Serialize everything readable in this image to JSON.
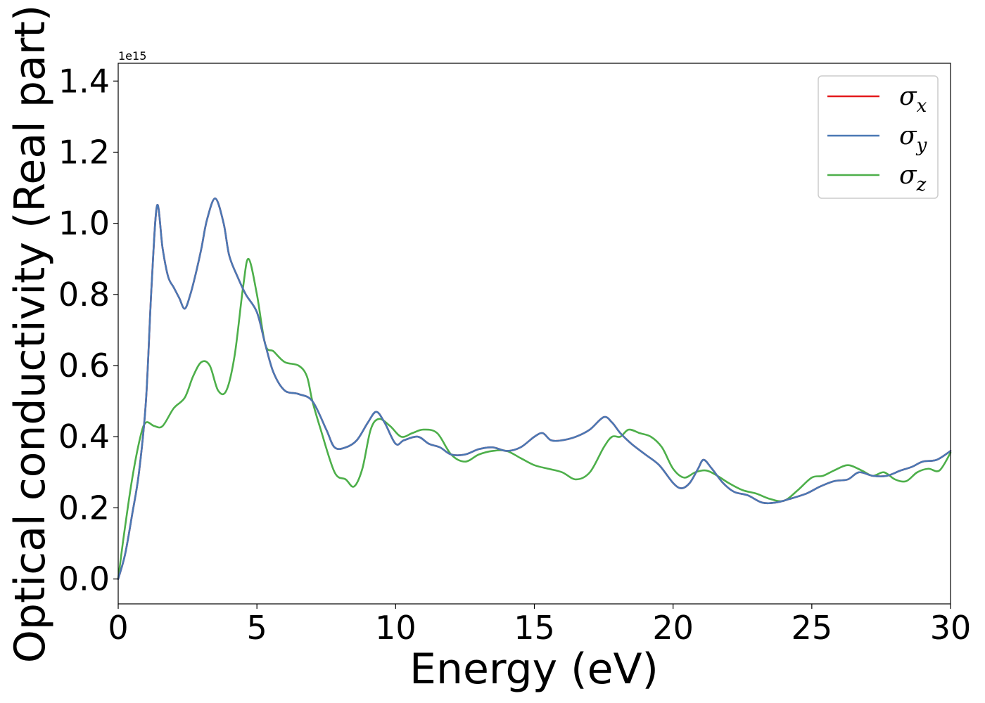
{
  "chart_data": {
    "type": "line",
    "xlabel": "Energy (eV)",
    "ylabel": "Optical conductivity (Real part)",
    "y_offset_label": "1e15",
    "xlim": [
      0,
      30
    ],
    "ylim": [
      -0.07,
      1.45
    ],
    "x_ticks": [
      0,
      5,
      10,
      15,
      20,
      25,
      30
    ],
    "x_tick_labels": [
      "0",
      "5",
      "10",
      "15",
      "20",
      "25",
      "30"
    ],
    "y_ticks": [
      0.0,
      0.2,
      0.4,
      0.6,
      0.8,
      1.0,
      1.2,
      1.4
    ],
    "y_tick_labels": [
      "0.0",
      "0.2",
      "0.4",
      "0.6",
      "0.8",
      "1.0",
      "1.2",
      "1.4"
    ],
    "grid": false,
    "legend_position": "top-right",
    "series": [
      {
        "name": "σx",
        "color": "#e41a1c",
        "x": [
          0,
          0.25,
          0.5,
          0.75,
          1.0,
          1.2,
          1.4,
          1.6,
          1.8,
          2.0,
          2.2,
          2.4,
          2.6,
          2.8,
          3.0,
          3.2,
          3.5,
          3.8,
          4.0,
          4.3,
          4.6,
          5.0,
          5.3,
          5.6,
          6.0,
          6.5,
          7.0,
          7.5,
          7.8,
          8.2,
          8.6,
          9.0,
          9.3,
          9.6,
          10.0,
          10.3,
          10.8,
          11.2,
          11.6,
          12.0,
          12.5,
          13.0,
          13.5,
          14.0,
          14.5,
          15.0,
          15.3,
          15.6,
          16.0,
          16.5,
          17.0,
          17.5,
          17.8,
          18.1,
          18.5,
          19.0,
          19.5,
          20.0,
          20.3,
          20.6,
          20.9,
          21.1,
          21.4,
          21.8,
          22.2,
          22.7,
          23.2,
          23.7,
          24.2,
          24.8,
          25.3,
          25.8,
          26.3,
          26.7,
          27.2,
          27.7,
          28.2,
          28.6,
          29.0,
          29.5,
          30.0
        ],
        "values": [
          0.0,
          0.07,
          0.18,
          0.3,
          0.5,
          0.82,
          1.05,
          0.93,
          0.85,
          0.82,
          0.79,
          0.76,
          0.8,
          0.86,
          0.93,
          1.01,
          1.07,
          1.0,
          0.91,
          0.85,
          0.8,
          0.75,
          0.66,
          0.58,
          0.53,
          0.52,
          0.5,
          0.42,
          0.37,
          0.37,
          0.39,
          0.44,
          0.47,
          0.44,
          0.38,
          0.39,
          0.4,
          0.38,
          0.37,
          0.35,
          0.35,
          0.365,
          0.37,
          0.36,
          0.37,
          0.4,
          0.41,
          0.39,
          0.39,
          0.4,
          0.42,
          0.455,
          0.44,
          0.41,
          0.38,
          0.35,
          0.32,
          0.27,
          0.255,
          0.27,
          0.31,
          0.335,
          0.31,
          0.27,
          0.245,
          0.235,
          0.215,
          0.215,
          0.225,
          0.24,
          0.26,
          0.275,
          0.28,
          0.3,
          0.29,
          0.29,
          0.305,
          0.315,
          0.33,
          0.335,
          0.36
        ]
      },
      {
        "name": "σy",
        "color": "#4a78b4",
        "x": [
          0,
          0.25,
          0.5,
          0.75,
          1.0,
          1.2,
          1.4,
          1.6,
          1.8,
          2.0,
          2.2,
          2.4,
          2.6,
          2.8,
          3.0,
          3.2,
          3.5,
          3.8,
          4.0,
          4.3,
          4.6,
          5.0,
          5.3,
          5.6,
          6.0,
          6.5,
          7.0,
          7.5,
          7.8,
          8.2,
          8.6,
          9.0,
          9.3,
          9.6,
          10.0,
          10.3,
          10.8,
          11.2,
          11.6,
          12.0,
          12.5,
          13.0,
          13.5,
          14.0,
          14.5,
          15.0,
          15.3,
          15.6,
          16.0,
          16.5,
          17.0,
          17.5,
          17.8,
          18.1,
          18.5,
          19.0,
          19.5,
          20.0,
          20.3,
          20.6,
          20.9,
          21.1,
          21.4,
          21.8,
          22.2,
          22.7,
          23.2,
          23.7,
          24.2,
          24.8,
          25.3,
          25.8,
          26.3,
          26.7,
          27.2,
          27.7,
          28.2,
          28.6,
          29.0,
          29.5,
          30.0
        ],
        "values": [
          0.0,
          0.07,
          0.18,
          0.3,
          0.5,
          0.82,
          1.05,
          0.93,
          0.85,
          0.82,
          0.79,
          0.76,
          0.8,
          0.86,
          0.93,
          1.01,
          1.07,
          1.0,
          0.91,
          0.85,
          0.8,
          0.75,
          0.66,
          0.58,
          0.53,
          0.52,
          0.5,
          0.42,
          0.37,
          0.37,
          0.39,
          0.44,
          0.47,
          0.44,
          0.38,
          0.39,
          0.4,
          0.38,
          0.37,
          0.35,
          0.35,
          0.365,
          0.37,
          0.36,
          0.37,
          0.4,
          0.41,
          0.39,
          0.39,
          0.4,
          0.42,
          0.455,
          0.44,
          0.41,
          0.38,
          0.35,
          0.32,
          0.27,
          0.255,
          0.27,
          0.31,
          0.335,
          0.31,
          0.27,
          0.245,
          0.235,
          0.215,
          0.215,
          0.225,
          0.24,
          0.26,
          0.275,
          0.28,
          0.3,
          0.29,
          0.29,
          0.305,
          0.315,
          0.33,
          0.335,
          0.36
        ]
      },
      {
        "name": "σz",
        "color": "#4daf4a",
        "x": [
          0,
          0.2,
          0.5,
          0.8,
          1.0,
          1.3,
          1.6,
          2.0,
          2.4,
          2.7,
          3.0,
          3.3,
          3.6,
          3.9,
          4.2,
          4.5,
          4.7,
          5.0,
          5.3,
          5.6,
          6.0,
          6.5,
          6.8,
          7.0,
          7.3,
          7.8,
          8.2,
          8.5,
          8.8,
          9.1,
          9.4,
          9.8,
          10.2,
          10.6,
          11.0,
          11.5,
          12.0,
          12.5,
          13.0,
          13.5,
          14.0,
          14.5,
          15.0,
          15.5,
          16.0,
          16.5,
          17.0,
          17.5,
          17.8,
          18.1,
          18.4,
          18.8,
          19.2,
          19.6,
          20.0,
          20.4,
          20.8,
          21.2,
          21.6,
          22.0,
          22.5,
          23.0,
          23.5,
          24.0,
          24.5,
          25.0,
          25.4,
          25.8,
          26.3,
          26.8,
          27.2,
          27.6,
          28.0,
          28.4,
          28.8,
          29.2,
          29.6,
          30.0
        ],
        "values": [
          0.0,
          0.12,
          0.28,
          0.4,
          0.44,
          0.43,
          0.43,
          0.48,
          0.51,
          0.57,
          0.61,
          0.6,
          0.53,
          0.53,
          0.63,
          0.82,
          0.9,
          0.8,
          0.66,
          0.64,
          0.61,
          0.6,
          0.57,
          0.5,
          0.42,
          0.3,
          0.28,
          0.26,
          0.31,
          0.42,
          0.45,
          0.43,
          0.4,
          0.41,
          0.42,
          0.41,
          0.35,
          0.33,
          0.35,
          0.36,
          0.36,
          0.34,
          0.32,
          0.31,
          0.3,
          0.28,
          0.3,
          0.37,
          0.4,
          0.4,
          0.42,
          0.41,
          0.4,
          0.37,
          0.31,
          0.285,
          0.3,
          0.305,
          0.29,
          0.27,
          0.25,
          0.24,
          0.225,
          0.22,
          0.25,
          0.285,
          0.29,
          0.305,
          0.32,
          0.305,
          0.29,
          0.3,
          0.28,
          0.275,
          0.3,
          0.31,
          0.305,
          0.355
        ]
      }
    ]
  }
}
